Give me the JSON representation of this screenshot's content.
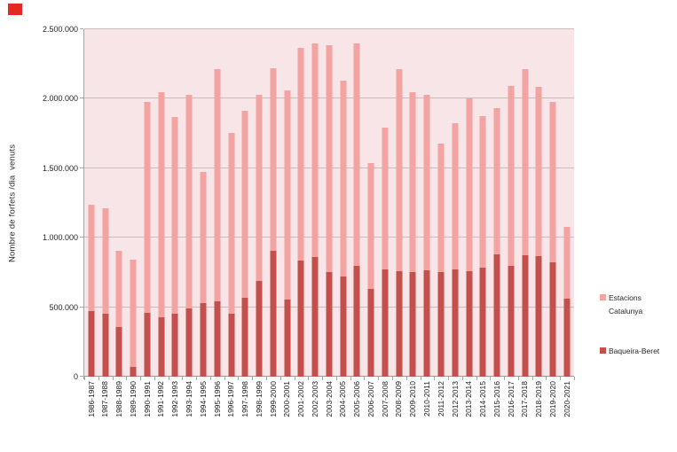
{
  "page": {
    "corner_mark_color": "#e12b22",
    "background_color": "#ffffff",
    "plot_background_color": "#f7e5e7",
    "gridline_color": "#c6bdbe",
    "axis_color": "#a6a6a6"
  },
  "chart_data": {
    "type": "bar",
    "overlap": "full-overlap (dark series drawn in front of light series)",
    "title": "",
    "xlabel": "",
    "ylabel": "Nombre de forfets /dia  venuts",
    "ylim": [
      0,
      2500000
    ],
    "yticks": [
      0,
      500000,
      1000000,
      1500000,
      2000000,
      2500000
    ],
    "ytick_labels": [
      "0",
      "500.000",
      "1.000.000",
      "1.500.000",
      "2.000.000",
      "2.500.000"
    ],
    "grid": true,
    "legend_position": "right",
    "categories": [
      "1986-1987",
      "1987-1988",
      "1988-1989",
      "1989-1990",
      "1990-1991",
      "1991-1992",
      "1992-1993",
      "1993-1994",
      "1994-1995",
      "1995-1996",
      "1996-1997",
      "1997-1998",
      "1998-1999",
      "1999-2000",
      "2000-2001",
      "2001-2002",
      "2002-2003",
      "2003-2004",
      "2004-2005",
      "2005-2006",
      "2006-2007",
      "2007-2008",
      "2008-2009",
      "2009-2010",
      "2010-2011",
      "2011-2012",
      "2012-2013",
      "2013-2014",
      "2014-2015",
      "2015-2016",
      "2016-2017",
      "2017-2018",
      "2018-2019",
      "2019-2020",
      "2020-2021"
    ],
    "series": [
      {
        "name": "Estacions Catalunya",
        "color": "#f3a3a1",
        "values": [
          1235000,
          1210000,
          905000,
          840000,
          1980000,
          2045000,
          1870000,
          2030000,
          1475000,
          2210000,
          1755000,
          1915000,
          2025000,
          2220000,
          2060000,
          2365000,
          2395000,
          2385000,
          2130000,
          2395000,
          1540000,
          1790000,
          2210000,
          2050000,
          2030000,
          1675000,
          1825000,
          2000000,
          1875000,
          1930000,
          2090000,
          2210000,
          2085000,
          1980000,
          1080000
        ]
      },
      {
        "name": "Baqueira-Beret",
        "color": "#c4504c",
        "values": [
          470000,
          455000,
          355000,
          70000,
          460000,
          430000,
          455000,
          490000,
          530000,
          540000,
          455000,
          570000,
          690000,
          905000,
          555000,
          835000,
          860000,
          750000,
          720000,
          795000,
          630000,
          770000,
          760000,
          755000,
          765000,
          750000,
          770000,
          760000,
          785000,
          880000,
          795000,
          875000,
          865000,
          820000,
          560000
        ]
      }
    ]
  }
}
